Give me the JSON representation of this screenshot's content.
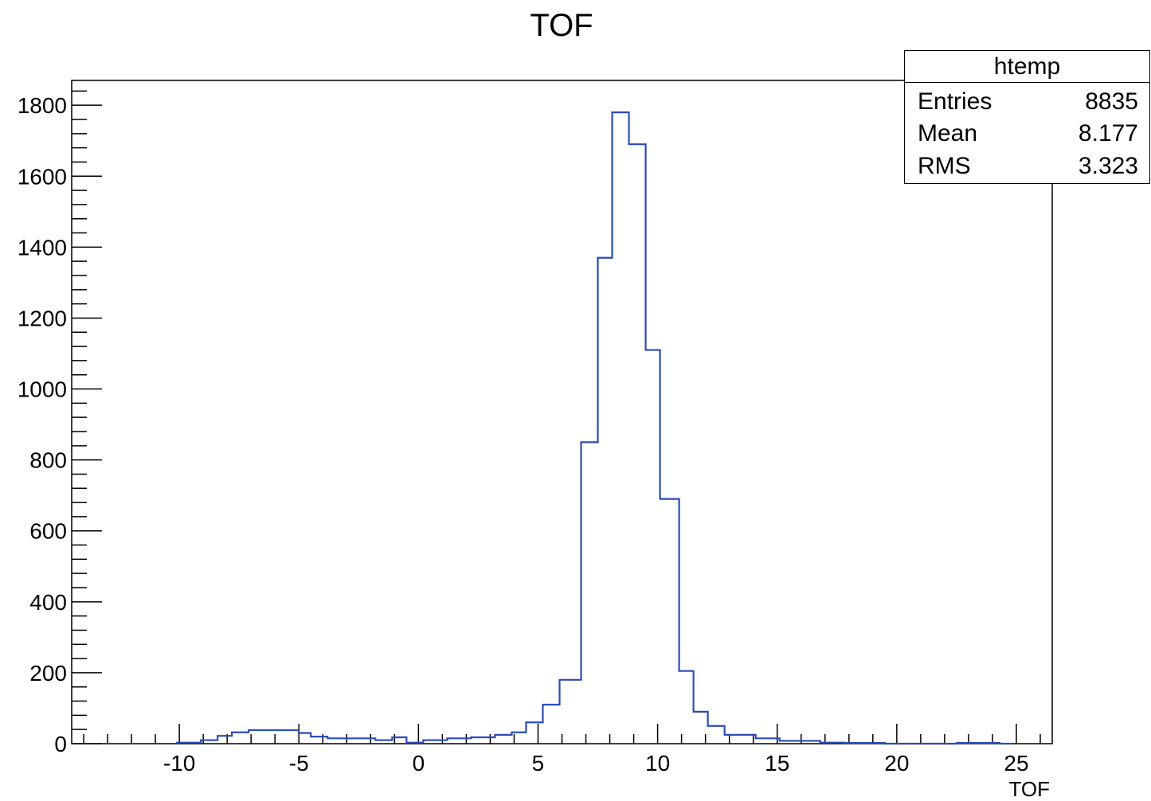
{
  "chart_data": {
    "type": "histogram",
    "title": "TOF",
    "xlabel": "TOF",
    "ylabel": "",
    "xlim": [
      -14.5,
      26.5
    ],
    "ylim": [
      0,
      1870
    ],
    "xticks": [
      -10,
      -5,
      0,
      5,
      10,
      15,
      20,
      25
    ],
    "yticks": [
      0,
      200,
      400,
      600,
      800,
      1000,
      1200,
      1400,
      1600,
      1800
    ],
    "bin_edges": [
      -10.1,
      -9.1,
      -8.4,
      -7.8,
      -7.1,
      -6.5,
      -5.8,
      -5.0,
      -4.5,
      -3.8,
      -3.1,
      -2.5,
      -1.8,
      -1.1,
      -0.5,
      0.2,
      0.6,
      1.2,
      2.2,
      3.2,
      3.9,
      4.5,
      5.2,
      5.9,
      6.8,
      7.5,
      8.1,
      8.8,
      9.5,
      10.1,
      10.9,
      11.5,
      12.1,
      12.8,
      14.1,
      15.1,
      16.8,
      17.8,
      18.5,
      19.5,
      22.5,
      23.8,
      24.3,
      24.8
    ],
    "counts": [
      3,
      10,
      22,
      32,
      38,
      38,
      38,
      30,
      20,
      15,
      15,
      15,
      10,
      18,
      3,
      10,
      10,
      15,
      18,
      25,
      32,
      60,
      110,
      180,
      850,
      1370,
      1780,
      1690,
      1110,
      690,
      205,
      90,
      50,
      25,
      15,
      8,
      3,
      2,
      2,
      0,
      2,
      2,
      0
    ],
    "color": "#2b4cb5",
    "stats_box": {
      "title": "htemp",
      "rows": [
        {
          "label": "Entries",
          "value": "8835"
        },
        {
          "label": "Mean",
          "value": "8.177"
        },
        {
          "label": "RMS",
          "value": "3.323"
        }
      ]
    }
  }
}
